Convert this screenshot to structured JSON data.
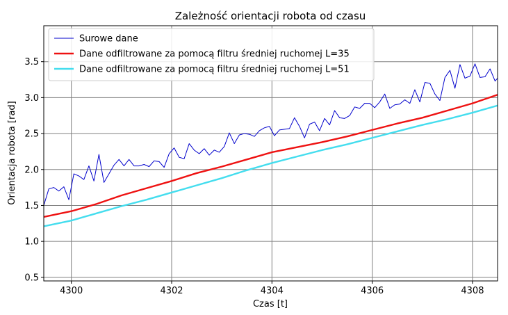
{
  "chart_data": {
    "type": "line",
    "title": "Zależność orientacji robota od czasu",
    "xlabel": "Czas [t]",
    "ylabel": "Orientacja robota [rad]",
    "xlim": [
      4299.45,
      4308.5
    ],
    "ylim": [
      0.45,
      4.0
    ],
    "xticks": [
      4300,
      4302,
      4304,
      4306,
      4308
    ],
    "yticks": [
      0.5,
      1.0,
      1.5,
      2.0,
      2.5,
      3.0,
      3.5
    ],
    "grid": true,
    "legend_position": "top-left",
    "colors": {
      "raw": "#0000cc",
      "l35": "#ee1111",
      "l51": "#44ddee",
      "grid": "#808080"
    },
    "series": [
      {
        "name": "Surowe dane",
        "color": "#0000cc",
        "width": 1,
        "x": [
          4299.45,
          4299.55,
          4299.65,
          4299.75,
          4299.85,
          4299.95,
          4300.05,
          4300.15,
          4300.25,
          4300.35,
          4300.45,
          4300.55,
          4300.65,
          4300.75,
          4300.85,
          4300.95,
          4301.05,
          4301.15,
          4301.25,
          4301.35,
          4301.45,
          4301.55,
          4301.65,
          4301.75,
          4301.85,
          4301.95,
          4302.05,
          4302.15,
          4302.25,
          4302.35,
          4302.45,
          4302.55,
          4302.65,
          4302.75,
          4302.85,
          4302.95,
          4303.05,
          4303.15,
          4303.25,
          4303.35,
          4303.45,
          4303.55,
          4303.65,
          4303.75,
          4303.85,
          4303.95,
          4304.05,
          4304.15,
          4304.25,
          4304.35,
          4304.45,
          4304.55,
          4304.65,
          4304.75,
          4304.85,
          4304.95,
          4305.05,
          4305.15,
          4305.25,
          4305.35,
          4305.45,
          4305.55,
          4305.65,
          4305.75,
          4305.85,
          4305.95,
          4306.05,
          4306.15,
          4306.25,
          4306.35,
          4306.45,
          4306.55,
          4306.65,
          4306.75,
          4306.85,
          4306.95,
          4307.05,
          4307.15,
          4307.25,
          4307.35,
          4307.45,
          4307.55,
          4307.65,
          4307.75,
          4307.85,
          4307.95,
          4308.05,
          4308.15,
          4308.25,
          4308.35,
          4308.45,
          4308.5
        ],
        "y": [
          1.5,
          1.73,
          1.75,
          1.7,
          1.76,
          1.58,
          1.94,
          1.91,
          1.86,
          2.05,
          1.84,
          2.21,
          1.82,
          1.94,
          2.06,
          2.14,
          2.05,
          2.14,
          2.05,
          2.05,
          2.07,
          2.04,
          2.12,
          2.11,
          2.03,
          2.22,
          2.3,
          2.17,
          2.15,
          2.36,
          2.27,
          2.22,
          2.29,
          2.2,
          2.27,
          2.24,
          2.32,
          2.51,
          2.36,
          2.48,
          2.5,
          2.49,
          2.46,
          2.54,
          2.58,
          2.6,
          2.47,
          2.55,
          2.56,
          2.57,
          2.72,
          2.6,
          2.44,
          2.63,
          2.66,
          2.54,
          2.71,
          2.62,
          2.82,
          2.72,
          2.71,
          2.75,
          2.87,
          2.85,
          2.92,
          2.92,
          2.86,
          2.94,
          3.05,
          2.85,
          2.9,
          2.91,
          2.97,
          2.92,
          3.11,
          2.94,
          3.21,
          3.2,
          3.05,
          2.96,
          3.28,
          3.38,
          3.13,
          3.46,
          3.27,
          3.3,
          3.47,
          3.28,
          3.29,
          3.4,
          3.23,
          3.27
        ]
      },
      {
        "name": "Dane odfiltrowane za pomocą filtru średniej ruchomej L=35",
        "color": "#ee1111",
        "width": 2.4,
        "x": [
          4299.45,
          4300.0,
          4300.5,
          4301.0,
          4301.5,
          4302.0,
          4302.5,
          4303.0,
          4303.5,
          4304.0,
          4304.5,
          4305.0,
          4305.5,
          4306.0,
          4306.5,
          4307.0,
          4307.5,
          4308.0,
          4308.5
        ],
        "y": [
          1.34,
          1.42,
          1.52,
          1.64,
          1.74,
          1.84,
          1.95,
          2.04,
          2.14,
          2.24,
          2.31,
          2.38,
          2.46,
          2.55,
          2.64,
          2.72,
          2.82,
          2.92,
          3.04
        ]
      },
      {
        "name": "Dane odfiltrowane za pomocą filtru średniej ruchomej L=51",
        "color": "#44ddee",
        "width": 2.4,
        "x": [
          4299.45,
          4300.0,
          4300.5,
          4301.0,
          4301.5,
          4302.0,
          4302.5,
          4303.0,
          4303.5,
          4304.0,
          4304.5,
          4305.0,
          4305.5,
          4306.0,
          4306.5,
          4307.0,
          4307.5,
          4308.0,
          4308.5
        ],
        "y": [
          1.21,
          1.29,
          1.39,
          1.49,
          1.58,
          1.68,
          1.78,
          1.88,
          1.99,
          2.09,
          2.18,
          2.27,
          2.35,
          2.44,
          2.53,
          2.62,
          2.7,
          2.79,
          2.89
        ]
      }
    ]
  }
}
